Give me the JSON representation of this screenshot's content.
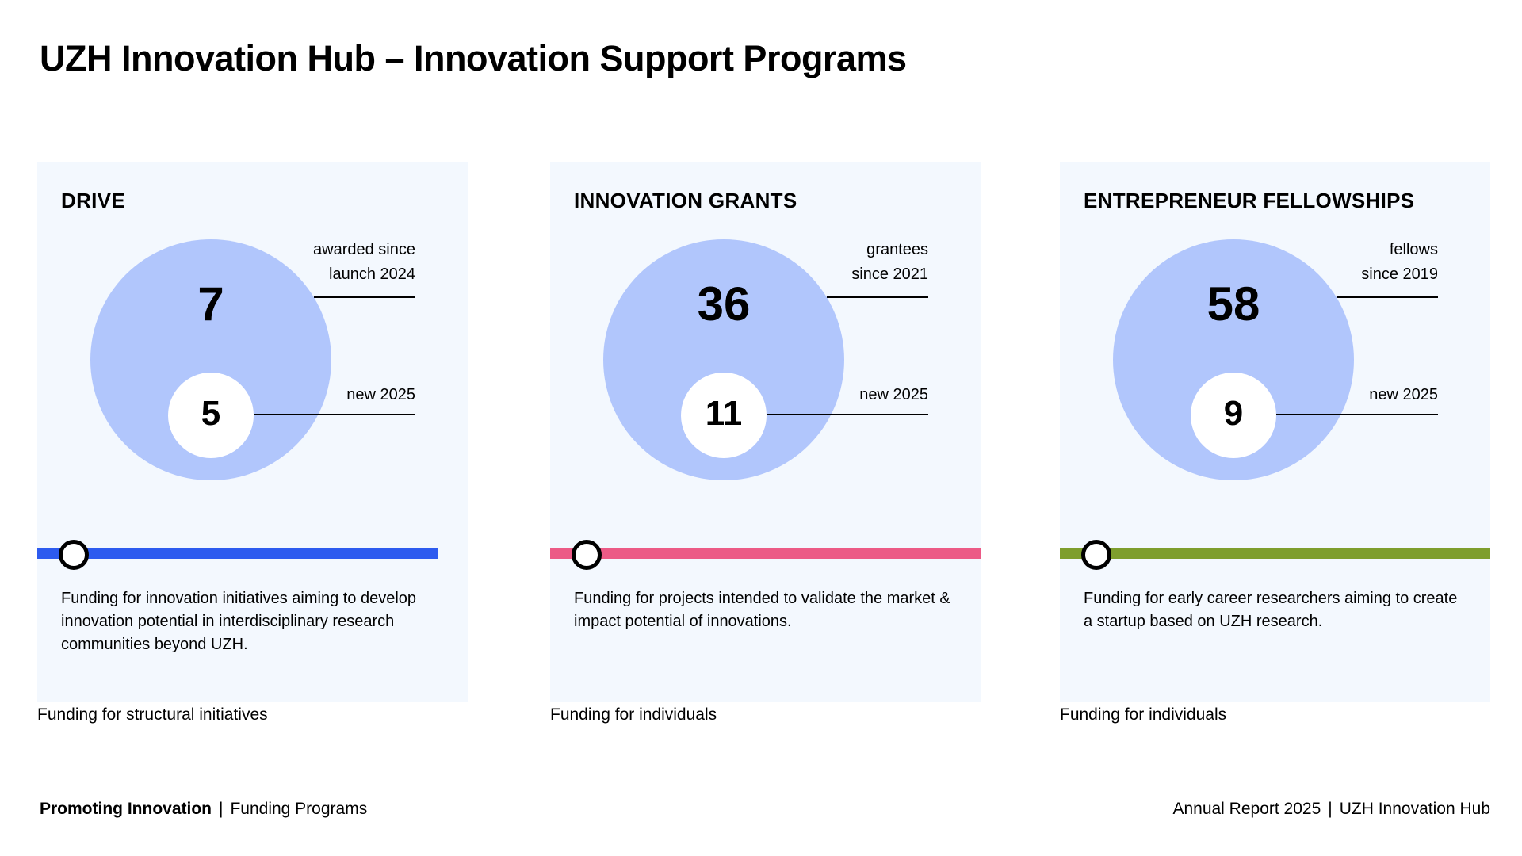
{
  "page_title": "UZH Innovation Hub – Innovation Support Programs",
  "colors": {
    "card_background": "#f3f8fe",
    "circle_fill": "#b1c6fc",
    "drive_bar": "#2d5bef",
    "grants_bar": "#ec5a86",
    "fellowships_bar": "#7e9e2d"
  },
  "programs": [
    {
      "title": "DRIVE",
      "total_value": "7",
      "total_label_line1": "awarded since",
      "total_label_line2": "launch 2024",
      "new_value": "5",
      "new_label": "new 2025",
      "description": "Funding for innovation initiatives aiming to develop innovation potential in interdisciplinary research communities beyond UZH.",
      "category": "Funding for structural initiatives"
    },
    {
      "title": "INNOVATION GRANTS",
      "total_value": "36",
      "total_label_line1": "grantees",
      "total_label_line2": "since 2021",
      "new_value": "11",
      "new_label": "new 2025",
      "description": "Funding for projects intended to validate the market & impact potential of innovations.",
      "category": "Funding for individuals"
    },
    {
      "title": "ENTREPRENEUR FELLOWSHIPS",
      "total_value": "58",
      "total_label_line1": "fellows",
      "total_label_line2": "since 2019",
      "new_value": "9",
      "new_label": "new 2025",
      "description": "Funding for early career researchers aiming to create a startup based on UZH research.",
      "category": "Funding for individuals"
    }
  ],
  "footer": {
    "section_title": "Promoting Innovation",
    "section_subtitle": "Funding Programs",
    "report_name": "Annual Report 2025",
    "organization": "UZH Innovation Hub",
    "separator": "|"
  }
}
